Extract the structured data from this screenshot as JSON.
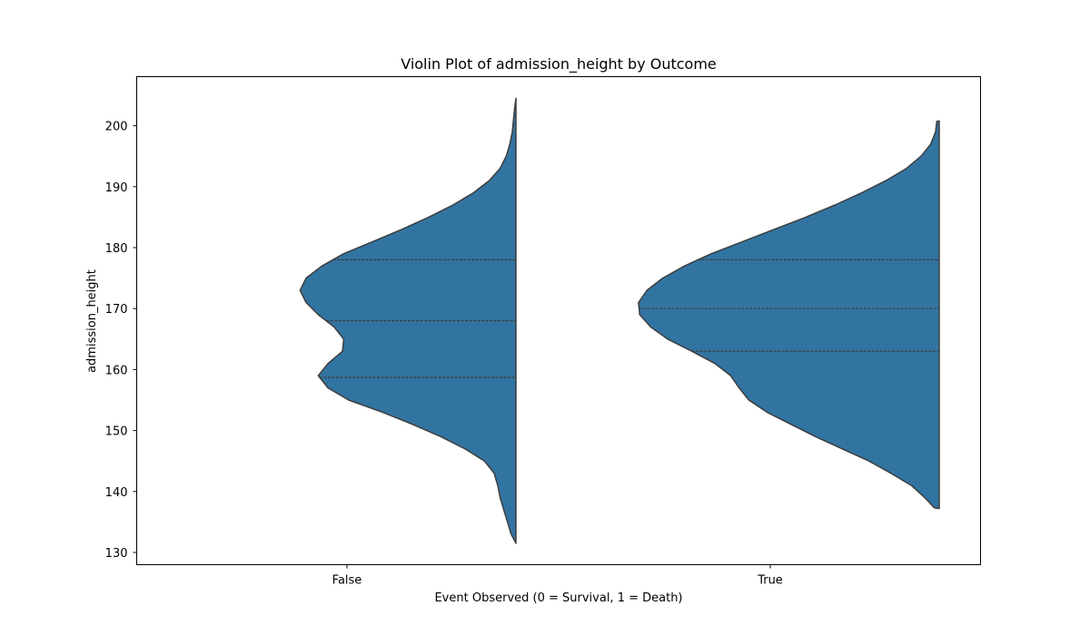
{
  "chart_data": {
    "type": "violin",
    "title": "Violin Plot of admission_height by Outcome",
    "xlabel": "Event Observed (0 = Survival, 1 = Death)",
    "ylabel": "admission_height",
    "ylim": [
      128,
      208
    ],
    "yticks": [
      130,
      140,
      150,
      160,
      170,
      180,
      190,
      200
    ],
    "categories": [
      "False",
      "True"
    ],
    "split": "left half only",
    "inner": "quartiles",
    "fill_color": "#3274a1",
    "edge_color": "#3d3d3d",
    "series": [
      {
        "category": "False",
        "quartiles": [
          158.7,
          168.0,
          178.0
        ],
        "density": [
          [
            131.5,
            0.0
          ],
          [
            133,
            0.04
          ],
          [
            135,
            0.07
          ],
          [
            137,
            0.1
          ],
          [
            139,
            0.13
          ],
          [
            141,
            0.15
          ],
          [
            143,
            0.18
          ],
          [
            145,
            0.26
          ],
          [
            147,
            0.42
          ],
          [
            149,
            0.62
          ],
          [
            151,
            0.85
          ],
          [
            153,
            1.1
          ],
          [
            155,
            1.38
          ],
          [
            157,
            1.55
          ],
          [
            159,
            1.63
          ],
          [
            161,
            1.55
          ],
          [
            163,
            1.43
          ],
          [
            165,
            1.42
          ],
          [
            167,
            1.5
          ],
          [
            169,
            1.63
          ],
          [
            171,
            1.73
          ],
          [
            173,
            1.78
          ],
          [
            175,
            1.73
          ],
          [
            177,
            1.6
          ],
          [
            179,
            1.42
          ],
          [
            181,
            1.18
          ],
          [
            183,
            0.94
          ],
          [
            185,
            0.72
          ],
          [
            187,
            0.52
          ],
          [
            189,
            0.35
          ],
          [
            191,
            0.22
          ],
          [
            193,
            0.13
          ],
          [
            195,
            0.08
          ],
          [
            197,
            0.05
          ],
          [
            199,
            0.03
          ],
          [
            201,
            0.02
          ],
          [
            203,
            0.01
          ],
          [
            204.5,
            0.0
          ]
        ]
      },
      {
        "category": "True",
        "quartiles": [
          163.0,
          170.0,
          178.0
        ],
        "density": [
          [
            137.2,
            0.0
          ],
          [
            137.3,
            0.04
          ],
          [
            139,
            0.12
          ],
          [
            141,
            0.23
          ],
          [
            143,
            0.4
          ],
          [
            145,
            0.58
          ],
          [
            147,
            0.8
          ],
          [
            149,
            1.02
          ],
          [
            151,
            1.22
          ],
          [
            153,
            1.42
          ],
          [
            155,
            1.57
          ],
          [
            157,
            1.65
          ],
          [
            159,
            1.72
          ],
          [
            161,
            1.85
          ],
          [
            163,
            2.04
          ],
          [
            165,
            2.24
          ],
          [
            167,
            2.38
          ],
          [
            169,
            2.47
          ],
          [
            171,
            2.48
          ],
          [
            173,
            2.41
          ],
          [
            175,
            2.28
          ],
          [
            177,
            2.1
          ],
          [
            179,
            1.88
          ],
          [
            181,
            1.62
          ],
          [
            183,
            1.36
          ],
          [
            185,
            1.1
          ],
          [
            187,
            0.86
          ],
          [
            189,
            0.64
          ],
          [
            191,
            0.44
          ],
          [
            193,
            0.27
          ],
          [
            195,
            0.15
          ],
          [
            197,
            0.07
          ],
          [
            199,
            0.03
          ],
          [
            200.7,
            0.02
          ],
          [
            200.8,
            0.0
          ]
        ]
      }
    ]
  }
}
